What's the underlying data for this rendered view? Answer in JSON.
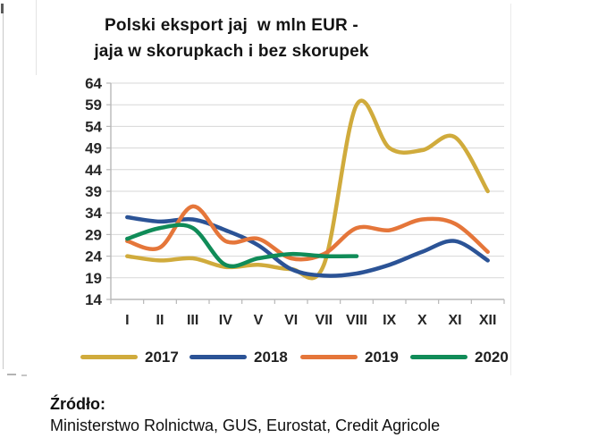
{
  "page": {
    "title_line1": "Polski eksport jaj  w mln EUR -",
    "title_line2": "jaja w skorupkach i bez skorupek"
  },
  "source": {
    "label": "Źródło:",
    "text": "Ministerstwo Rolnictwa, GUS, Eurostat, Credit Agricole"
  },
  "colors": {
    "gridline": "#d7d7d7",
    "axis": "#b8b8b8",
    "tick_text": "#262626",
    "title_text": "#141414"
  },
  "chart_data": {
    "type": "line",
    "title": "Polski eksport jaj w mln EUR - jaja w skorupkach i bez skorupek",
    "xlabel": "",
    "ylabel": "mln EUR",
    "categories": [
      "I",
      "II",
      "III",
      "IV",
      "V",
      "VI",
      "VII",
      "VIII",
      "IX",
      "X",
      "XI",
      "XII"
    ],
    "y_ticks": [
      64,
      59,
      54,
      49,
      44,
      39,
      34,
      29,
      24,
      19,
      14
    ],
    "ylim": [
      14,
      64
    ],
    "grid": true,
    "smooth": true,
    "legend_position": "bottom",
    "series": [
      {
        "name": "2017",
        "color": "#d0ab3c",
        "values": [
          24,
          23,
          23.5,
          21.5,
          22,
          21,
          22,
          59,
          49,
          48.5,
          51.5,
          39
        ]
      },
      {
        "name": "2018",
        "color": "#2b5396",
        "values": [
          33,
          32,
          32.5,
          30,
          26.5,
          21,
          19.5,
          20,
          22,
          25,
          27.5,
          23
        ]
      },
      {
        "name": "2019",
        "color": "#e5763a",
        "values": [
          27.5,
          26,
          35.5,
          27.5,
          28,
          23.5,
          24.5,
          30.5,
          30,
          32.5,
          31.5,
          25
        ]
      },
      {
        "name": "2020",
        "color": "#108c58",
        "values": [
          28,
          30.5,
          30.5,
          22,
          23.5,
          24.5,
          24,
          24
        ]
      }
    ]
  }
}
